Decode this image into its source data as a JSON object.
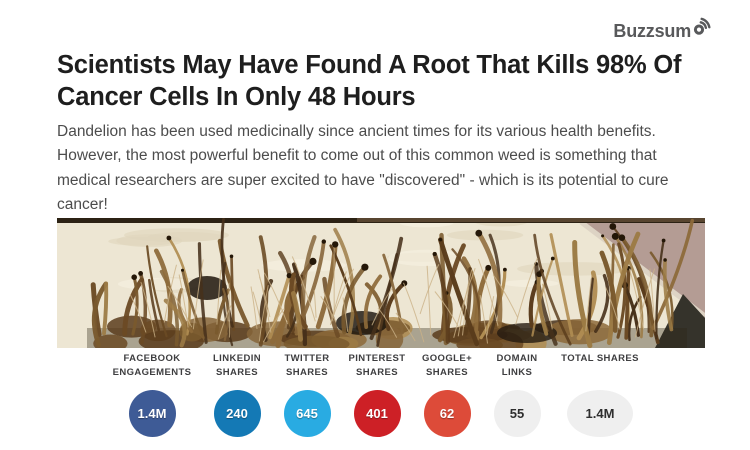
{
  "brand": {
    "wordmark": "Buzzsum",
    "icon": "signal-waves-icon",
    "full_name": "Buzzsumo",
    "color": "#58595b"
  },
  "article": {
    "title": "Scientists May Have Found A Root That Kills 98% Of Cancer Cells In Only 48 Hours",
    "description": "Dandelion has been used medicinally since ancient times for its various health benefits. However, the most powerful benefit to come out of this common weed is something that medical researchers are super excited to have \"discovered\" - which is its potential to cure cancer!",
    "image_subject": "dandelion roots piled on a cutting board"
  },
  "metrics": [
    {
      "label_lines": [
        "FACEBOOK",
        "ENGAGEMENTS"
      ],
      "value": "1.4M",
      "bubble_color": "#3e5b96",
      "text_color": "#ffffff",
      "wide": false
    },
    {
      "label_lines": [
        "LINKEDIN",
        "SHARES"
      ],
      "value": "240",
      "bubble_color": "#1479b5",
      "text_color": "#ffffff",
      "wide": false
    },
    {
      "label_lines": [
        "TWITTER",
        "SHARES"
      ],
      "value": "645",
      "bubble_color": "#29abe2",
      "text_color": "#ffffff",
      "wide": false
    },
    {
      "label_lines": [
        "PINTEREST",
        "SHARES"
      ],
      "value": "401",
      "bubble_color": "#cd2026",
      "text_color": "#ffffff",
      "wide": false
    },
    {
      "label_lines": [
        "GOOGLE+",
        "SHARES"
      ],
      "value": "62",
      "bubble_color": "#dd4b39",
      "text_color": "#ffffff",
      "wide": false
    },
    {
      "label_lines": [
        "DOMAIN",
        "LINKS"
      ],
      "value": "55",
      "bubble_color": "#efefef",
      "text_color": "#2e2e2e",
      "wide": false
    },
    {
      "label_lines": [
        "TOTAL SHARES"
      ],
      "value": "1.4M",
      "bubble_color": "#efefef",
      "text_color": "#2e2e2e",
      "wide": true
    }
  ]
}
